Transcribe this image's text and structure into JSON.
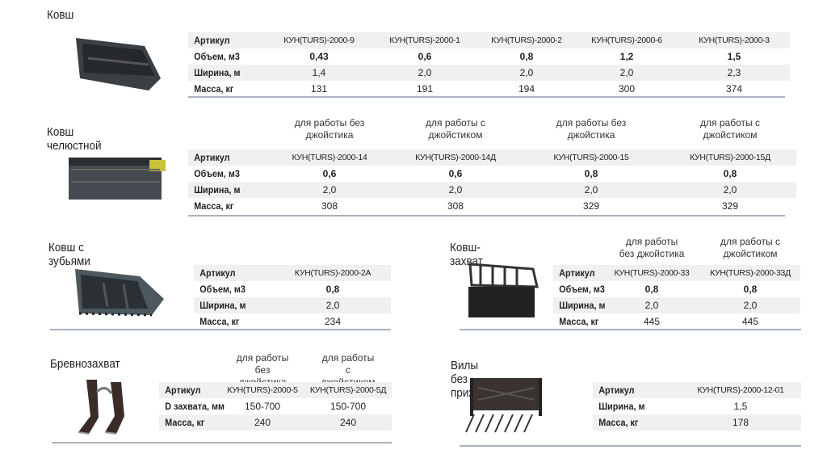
{
  "sections": [
    {
      "title": "Ковш",
      "image": "bucket-image",
      "headers": [],
      "rows": [
        {
          "label": "Артикул",
          "values": [
            "КУН(TURS)-2000-9",
            "КУН(TURS)-2000-1",
            "КУН(TURS)-2000-2",
            "КУН(TURS)-2000-6",
            "КУН(TURS)-2000-3"
          ]
        },
        {
          "label": "Объем, м3",
          "values": [
            "0,43",
            "0,6",
            "0,8",
            "1,2",
            "1,5"
          ]
        },
        {
          "label": "Ширина, м",
          "values": [
            "1,4",
            "2,0",
            "2,0",
            "2,0",
            "2,3"
          ]
        },
        {
          "label": "Масса, кг",
          "values": [
            "131",
            "191",
            "194",
            "300",
            "374"
          ]
        }
      ]
    },
    {
      "title": "Ковш челюстной",
      "image": "jaw-bucket-image",
      "headers": [
        "для работы без джойстика",
        "для работы с джойстиком",
        "для работы без джойстика",
        "для работы с джойстиком"
      ],
      "rows": [
        {
          "label": "Артикул",
          "values": [
            "КУН(TURS)-2000-14",
            "КУН(TURS)-2000-14Д",
            "КУН(TURS)-2000-15",
            "КУН(TURS)-2000-15Д"
          ]
        },
        {
          "label": "Объем, м3",
          "values": [
            "0,6",
            "0,6",
            "0,8",
            "0,8"
          ]
        },
        {
          "label": "Ширина, м",
          "values": [
            "2,0",
            "2,0",
            "2,0",
            "2,0"
          ]
        },
        {
          "label": "Масса, кг",
          "values": [
            "308",
            "308",
            "329",
            "329"
          ]
        }
      ]
    },
    {
      "title": "Ковш с зубьями",
      "image": "toothed-bucket-image",
      "headers": [],
      "rows": [
        {
          "label": "Артикул",
          "values": [
            "КУН(TURS)-2000-2А"
          ]
        },
        {
          "label": "Объем, м3",
          "values": [
            "0,8"
          ]
        },
        {
          "label": "Ширина, м",
          "values": [
            "2,0"
          ]
        },
        {
          "label": "Масса, кг",
          "values": [
            "234"
          ]
        }
      ]
    },
    {
      "title": "Ковш-захват",
      "image": "grab-bucket-image",
      "headers": [
        "для работы без джойстика",
        "для работы с джойстиком"
      ],
      "rows": [
        {
          "label": "Артикул",
          "values": [
            "КУН(TURS)-2000-33",
            "КУН(TURS)-2000-33Д"
          ]
        },
        {
          "label": "Объем, м3",
          "values": [
            "0,8",
            "0,8"
          ]
        },
        {
          "label": "Ширина, м",
          "values": [
            "2,0",
            "2,0"
          ]
        },
        {
          "label": "Масса, кг",
          "values": [
            "445",
            "445"
          ]
        }
      ]
    },
    {
      "title": "Бревнозахват",
      "image": "log-grab-image",
      "headers": [
        "для работы без джойстика",
        "для работы с джойстиком"
      ],
      "rows": [
        {
          "label": "Артикул",
          "values": [
            "КУН(TURS)-2000-5",
            "КУН(TURS)-2000-5Д"
          ]
        },
        {
          "label": "D захвата, мм",
          "values": [
            "150-700",
            "150-700"
          ]
        },
        {
          "label": "Масса, кг",
          "values": [
            "240",
            "240"
          ]
        }
      ]
    },
    {
      "title": "Вилы без прижима",
      "image": "forks-image",
      "headers": [],
      "rows": [
        {
          "label": "Артикул",
          "values": [
            "КУН(TURS)-2000-12-01"
          ]
        },
        {
          "label": "Ширина, м",
          "values": [
            "1,5"
          ]
        },
        {
          "label": "Масса, кг",
          "values": [
            "178"
          ]
        }
      ]
    }
  ]
}
